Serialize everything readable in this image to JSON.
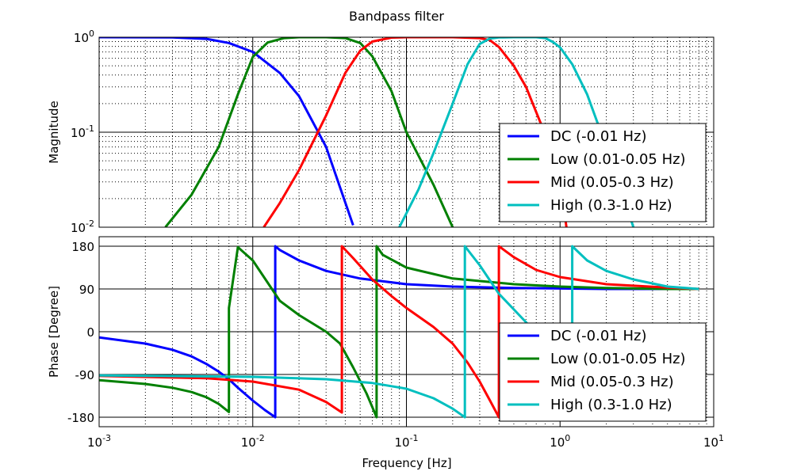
{
  "chart_data": {
    "type": "line",
    "title": "Bandpass filter",
    "xlabel": "Frequency [Hz]",
    "xscale": "log",
    "xlim": [
      0.001,
      10
    ],
    "x_tick_labels": [
      {
        "base": "10",
        "exp": "-3"
      },
      {
        "base": "10",
        "exp": "-2"
      },
      {
        "base": "10",
        "exp": "-1"
      },
      {
        "base": "10",
        "exp": "0"
      },
      {
        "base": "10",
        "exp": "1"
      }
    ],
    "legend_position": "lower-right",
    "colors": {
      "DC": "#0000ff",
      "Low": "#008000",
      "Mid": "#ff0000",
      "High": "#00bfbf"
    },
    "panels": [
      {
        "id": "magnitude",
        "ylabel": "Magnitude",
        "yscale": "log",
        "ylim": [
          0.01,
          1
        ],
        "grid": true,
        "y_tick_labels": [
          {
            "base": "10",
            "exp": "0",
            "value": 1
          },
          {
            "base": "10",
            "exp": "-1",
            "value": 0.1
          },
          {
            "base": "10",
            "exp": "-2",
            "value": 0.01
          }
        ],
        "series": [
          {
            "name": "DC (-0.01 Hz)",
            "key": "DC",
            "x": [
              0.001,
              0.003,
              0.005,
              0.007,
              0.01,
              0.015,
              0.02,
              0.03,
              0.045
            ],
            "y": [
              1.0,
              0.995,
              0.96,
              0.87,
              0.7,
              0.42,
              0.24,
              0.07,
              0.0105
            ]
          },
          {
            "name": "Low (0.01-0.05 Hz)",
            "key": "Low",
            "x": [
              0.0027,
              0.004,
              0.006,
              0.008,
              0.01,
              0.0125,
              0.016,
              0.02,
              0.03,
              0.04,
              0.05,
              0.06,
              0.08,
              0.1,
              0.15,
              0.2
            ],
            "y": [
              0.01,
              0.022,
              0.07,
              0.25,
              0.62,
              0.88,
              0.98,
              1.0,
              1.0,
              0.98,
              0.87,
              0.63,
              0.27,
              0.1,
              0.028,
              0.01
            ]
          },
          {
            "name": "Mid (0.05-0.3 Hz)",
            "key": "Mid",
            "x": [
              0.0118,
              0.015,
              0.02,
              0.03,
              0.04,
              0.05,
              0.06,
              0.08,
              0.1,
              0.2,
              0.3,
              0.35,
              0.4,
              0.5,
              0.6,
              0.8,
              1.0,
              1.1
            ],
            "y": [
              0.01,
              0.018,
              0.04,
              0.15,
              0.42,
              0.72,
              0.9,
              0.99,
              1.0,
              1.0,
              0.98,
              0.93,
              0.79,
              0.5,
              0.3,
              0.095,
              0.032,
              0.01
            ]
          },
          {
            "name": "High (0.3-1.0 Hz)",
            "key": "High",
            "x": [
              0.09,
              0.12,
              0.15,
              0.2,
              0.25,
              0.3,
              0.35,
              0.4,
              0.5,
              0.7,
              0.8,
              0.9,
              1.0,
              1.2,
              1.5,
              2.0,
              2.5,
              3.0
            ],
            "y": [
              0.01,
              0.025,
              0.06,
              0.2,
              0.52,
              0.85,
              0.97,
              0.995,
              1.0,
              1.0,
              0.98,
              0.89,
              0.78,
              0.52,
              0.25,
              0.07,
              0.025,
              0.01
            ]
          }
        ]
      },
      {
        "id": "phase",
        "ylabel": "Phase [Degree]",
        "yscale": "linear",
        "ylim": [
          -200,
          200
        ],
        "grid": true,
        "y_tick_labels": [
          {
            "base": "180",
            "exp": "",
            "value": 180
          },
          {
            "base": "90",
            "exp": "",
            "value": 90
          },
          {
            "base": "0",
            "exp": "",
            "value": 0
          },
          {
            "base": "-90",
            "exp": "",
            "value": -90
          },
          {
            "base": "-180",
            "exp": "",
            "value": -180
          }
        ],
        "series": [
          {
            "name": "DC (-0.01 Hz)",
            "key": "DC",
            "x": [
              0.001,
              0.002,
              0.003,
              0.004,
              0.005,
              0.006,
              0.007,
              0.008,
              0.01,
              0.012,
              0.014,
              0.014,
              0.015,
              0.02,
              0.03,
              0.05,
              0.1,
              0.2,
              0.5,
              1,
              2,
              5,
              8
            ],
            "y": [
              -12,
              -25,
              -38,
              -52,
              -68,
              -84,
              -100,
              -118,
              -145,
              -165,
              -180,
              180,
              172,
              150,
              128,
              112,
              100,
              95,
              92,
              91,
              90,
              90,
              90
            ]
          },
          {
            "name": "Low (0.01-0.05 Hz)",
            "key": "Low",
            "x": [
              0.001,
              0.002,
              0.003,
              0.004,
              0.005,
              0.006,
              0.007,
              0.007,
              0.008,
              0.01,
              0.015,
              0.02,
              0.03,
              0.037,
              0.045,
              0.055,
              0.064,
              0.064,
              0.07,
              0.1,
              0.2,
              0.5,
              1,
              2,
              5,
              8
            ],
            "y": [
              -102,
              -110,
              -118,
              -127,
              -138,
              -152,
              -169,
              50,
              178,
              150,
              65,
              35,
              0,
              -25,
              -75,
              -130,
              -180,
              180,
              162,
              135,
              112,
              100,
              95,
              92,
              90,
              90
            ]
          },
          {
            "name": "Mid (0.05-0.3 Hz)",
            "key": "Mid",
            "x": [
              0.001,
              0.005,
              0.01,
              0.02,
              0.03,
              0.038,
              0.038,
              0.045,
              0.06,
              0.08,
              0.1,
              0.15,
              0.2,
              0.25,
              0.3,
              0.35,
              0.4,
              0.4,
              0.5,
              0.7,
              1,
              2,
              5,
              8
            ],
            "y": [
              -93,
              -98,
              -105,
              -122,
              -148,
              -170,
              180,
              155,
              110,
              75,
              50,
              10,
              -25,
              -65,
              -105,
              -145,
              -180,
              180,
              157,
              130,
              115,
              100,
              93,
              90
            ]
          },
          {
            "name": "High (0.3-1.0 Hz)",
            "key": "High",
            "x": [
              0.001,
              0.01,
              0.03,
              0.06,
              0.1,
              0.15,
              0.2,
              0.24,
              0.24,
              0.3,
              0.4,
              0.6,
              0.8,
              1.0,
              1.2,
              1.2,
              1.5,
              2,
              3,
              5,
              8
            ],
            "y": [
              -92,
              -95,
              -100,
              -108,
              -120,
              -140,
              -162,
              -180,
              180,
              140,
              80,
              20,
              -30,
              -75,
              -113,
              180,
              150,
              128,
              110,
              95,
              90
            ]
          }
        ]
      }
    ]
  }
}
